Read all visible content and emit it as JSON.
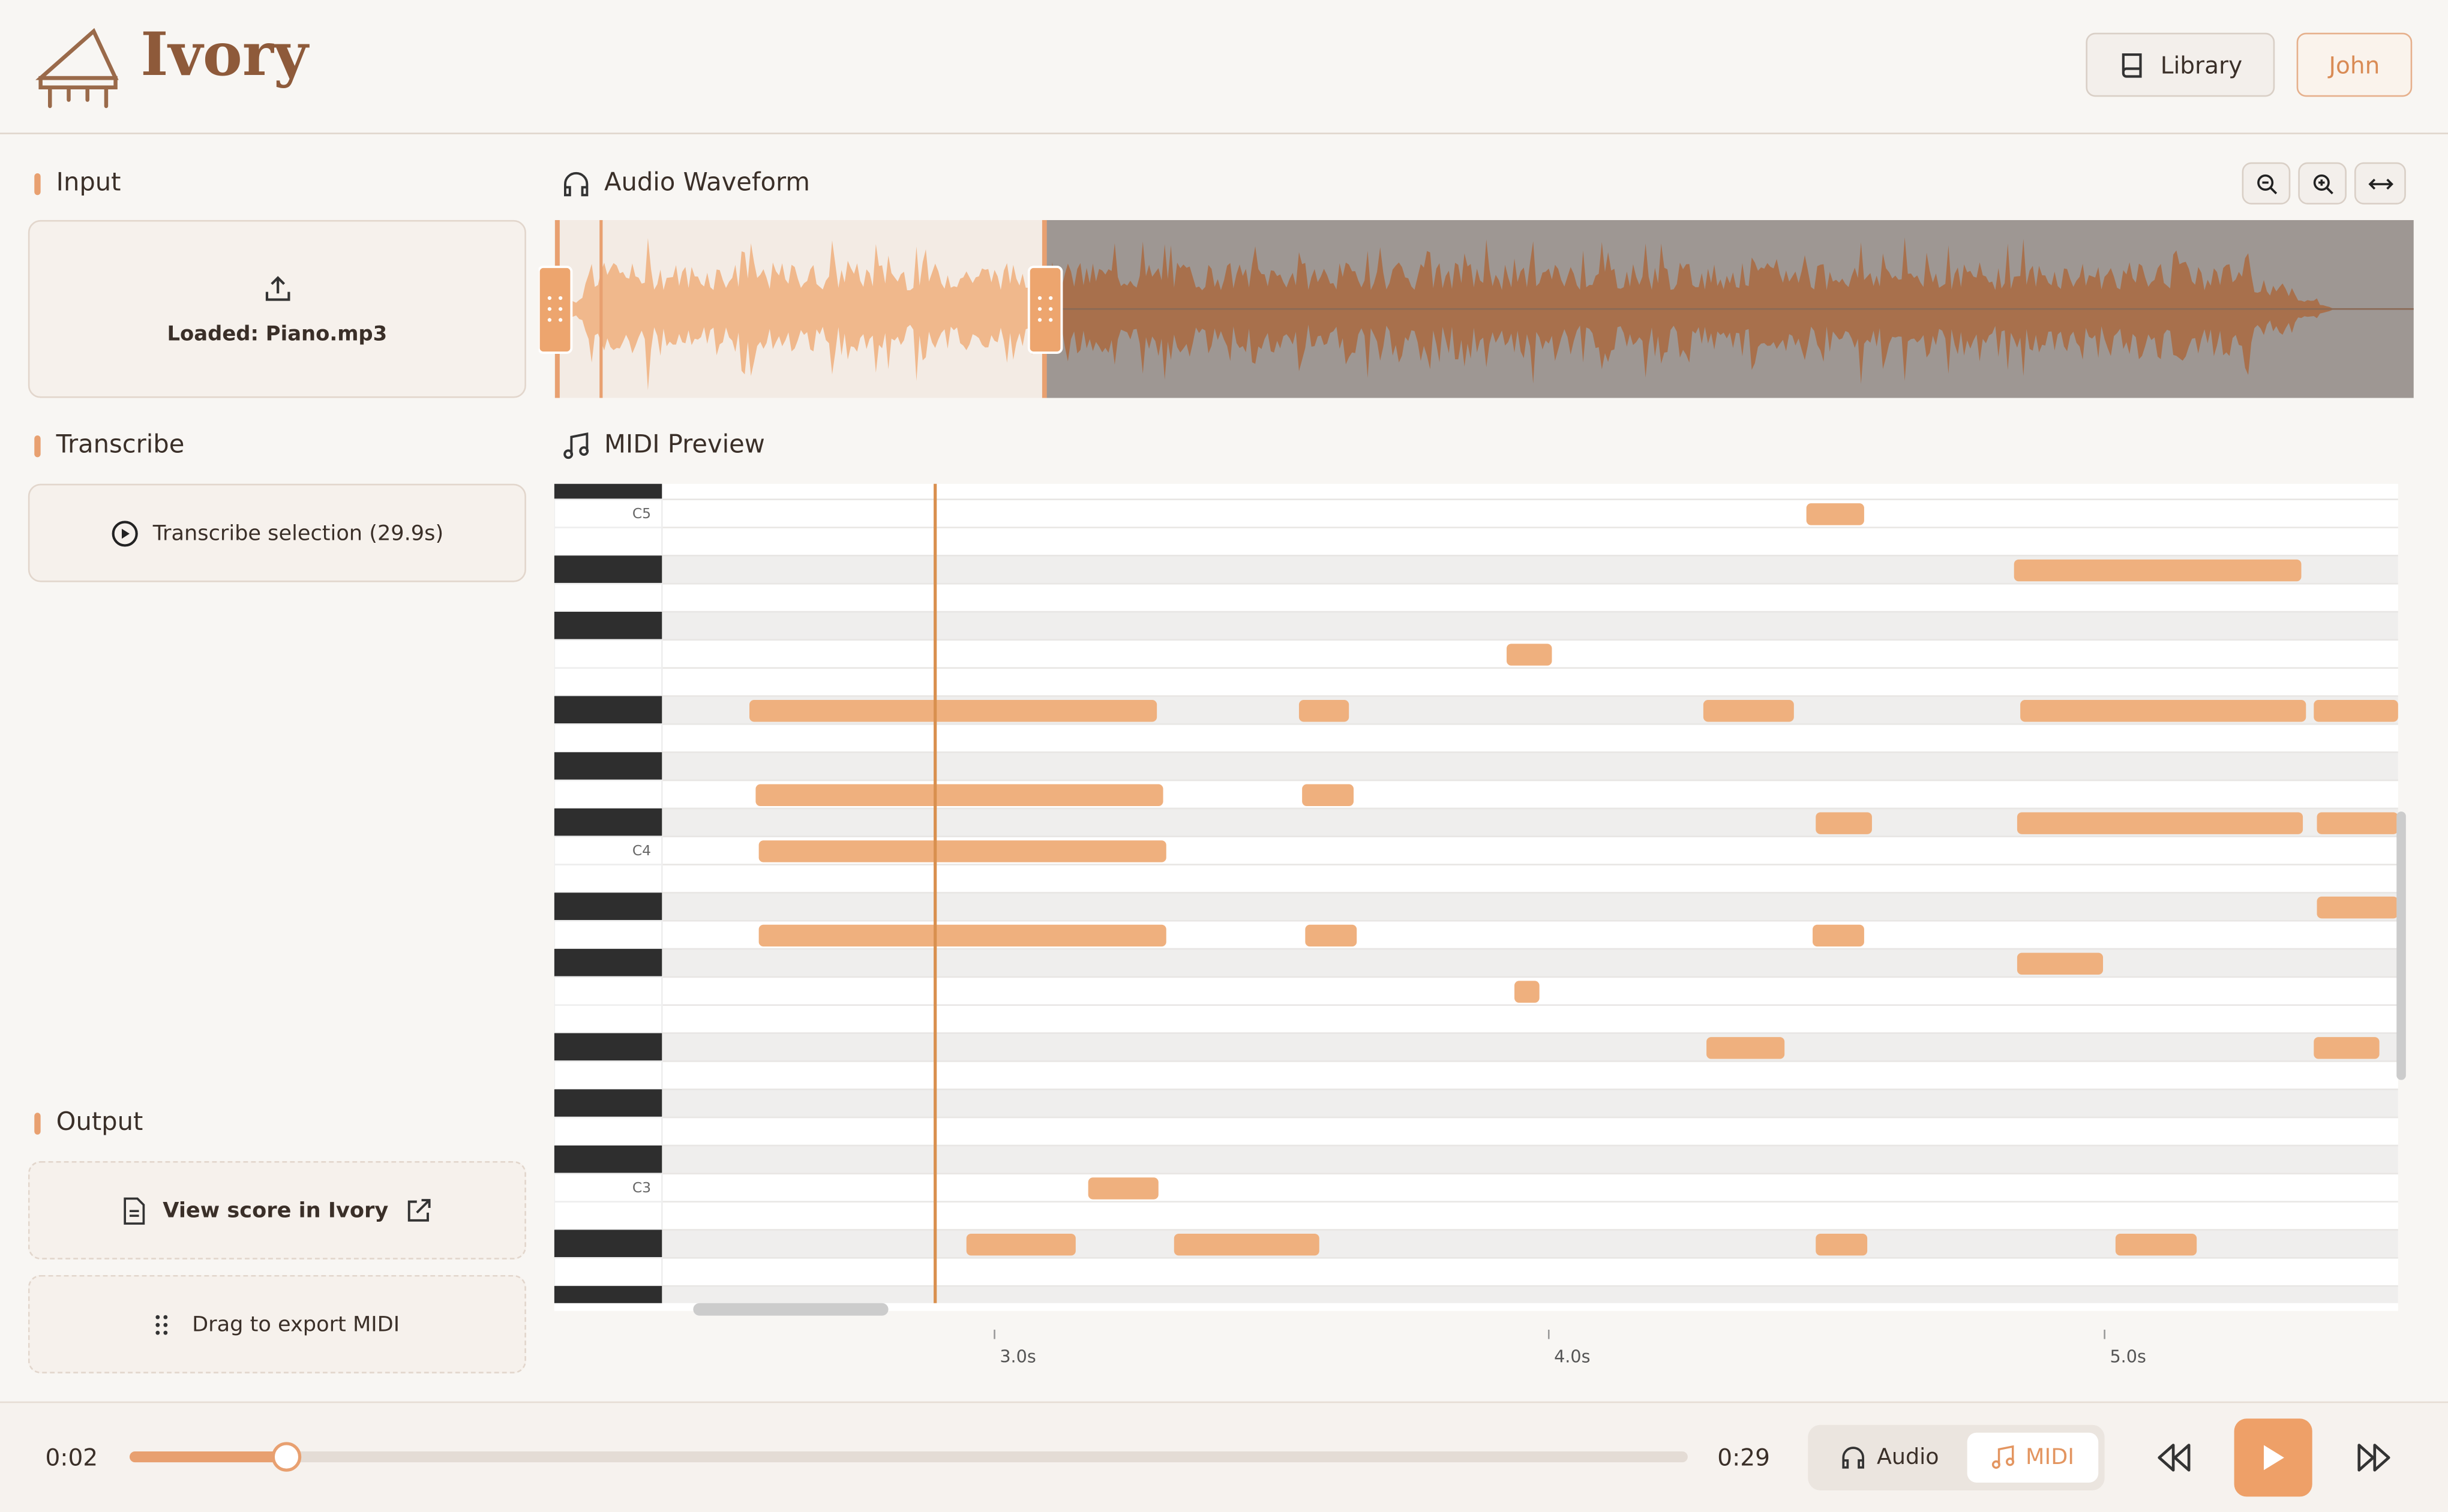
{
  "header": {
    "brand": "Ivory",
    "library": "Library",
    "user": "John"
  },
  "sidebar": {
    "input": {
      "title": "Input",
      "file": "Loaded: Piano.mp3"
    },
    "transcribe": {
      "title": "Transcribe",
      "button": "Transcribe selection (29.9s)"
    },
    "output": {
      "title": "Output",
      "view": "View score in Ivory",
      "export": "Drag to export MIDI"
    }
  },
  "waveform": {
    "title": "Audio Waveform"
  },
  "midi": {
    "title": "MIDI Preview",
    "octave_labels": [
      "C5",
      "C4",
      "C3"
    ],
    "time_labels": [
      "3.0s",
      "4.0s",
      "5.0s"
    ]
  },
  "player": {
    "current": "0:02",
    "total": "0:29",
    "modes": [
      "Audio",
      "MIDI"
    ]
  }
}
